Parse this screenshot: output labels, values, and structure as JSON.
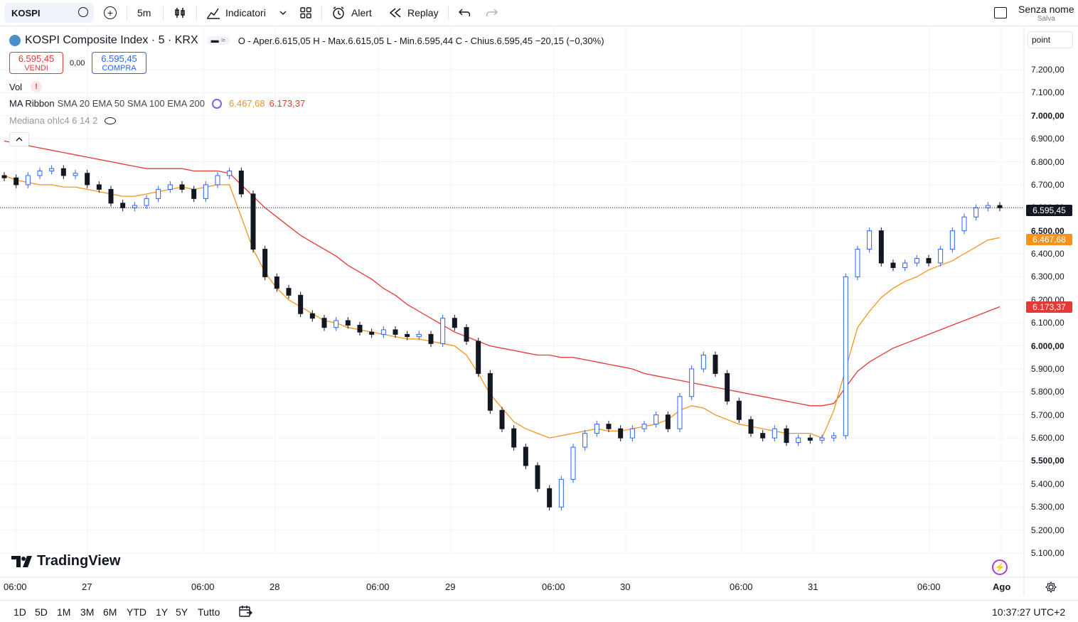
{
  "toolbar": {
    "symbol": "KOSPI",
    "interval": "5m",
    "indicators": "Indicatori",
    "alert": "Alert",
    "replay": "Replay",
    "layout_name": "Senza nome",
    "save": "Salva"
  },
  "legend": {
    "title": "KOSPI Composite Index · 5 · KRX",
    "ohlc": "O - Aper.6.615,05  H - Max.6.615,05  L - Min.6.595,44  C - Chius.6.595,45  −20,15 (−0,30%)",
    "sell_price": "6.595,45",
    "sell_label": "VENDI",
    "spread": "0,00",
    "buy_price": "6.595,45",
    "buy_label": "COMPRA",
    "vol": "Vol",
    "ma_label": "MA Ribbon",
    "ma_params": "SMA 20 EMA 50 SMA 100 EMA 200",
    "ma_val1": "6.467,68",
    "ma_val2": "6.173,37",
    "median": "Mediana ohlc4 6 14 2"
  },
  "scale_mode": "point",
  "y_ticks": [
    "7.200,00",
    "7.100,00",
    "7.000,00",
    "6.900,00",
    "6.800,00",
    "6.700,00",
    "6.600,00",
    "6.500,00",
    "6.400,00",
    "6.300,00",
    "6.200,00",
    "6.100,00",
    "6.000,00",
    "5.900,00",
    "5.800,00",
    "5.700,00",
    "5.600,00",
    "5.500,00",
    "5.400,00",
    "5.300,00",
    "5.200,00",
    "5.100,00"
  ],
  "x_ticks": [
    "06:00",
    "27",
    "06:00",
    "28",
    "06:00",
    "29",
    "06:00",
    "30",
    "06:00",
    "31",
    "06:00",
    "Ago"
  ],
  "tags": {
    "last": "6.595,45",
    "ema": "6.467,68",
    "sma": "6.173,37"
  },
  "ranges": [
    "1D",
    "5D",
    "1M",
    "3M",
    "6M",
    "YTD",
    "1Y",
    "5Y",
    "Tutto"
  ],
  "clock": "10:37:27 UTC+2",
  "brand": "TradingView",
  "colors": {
    "up": "#2962ff",
    "down": "#131722",
    "ema": "#f7931a",
    "sma": "#e53935"
  },
  "chart_data": {
    "type": "line",
    "ylim": [
      5050,
      7250
    ],
    "series": [
      {
        "values": [
          6730,
          6700,
          6740,
          6760,
          6770,
          6740,
          6750,
          6700,
          6680,
          6620,
          6600,
          6610,
          6640,
          6680,
          6700,
          6680,
          6640,
          6700,
          6740,
          6760,
          6660,
          6420,
          6300,
          6250,
          6220,
          6140,
          6120,
          6080,
          6110,
          6090,
          6060,
          6050,
          6070,
          6050,
          6040,
          6050,
          6010,
          6120,
          6080,
          6020,
          5880,
          5720,
          5640,
          5560,
          5480,
          5380,
          5300,
          5420,
          5560,
          5620,
          5660,
          5640,
          5600,
          5640,
          5660,
          5700,
          5640,
          5780,
          5900,
          5960,
          5880,
          5760,
          5680,
          5620,
          5600,
          5640,
          5580,
          5600,
          5590,
          5600,
          5610,
          6300,
          6420,
          6500,
          6360,
          6340,
          6360,
          6380,
          6360,
          6420,
          6500,
          6560,
          6600,
          6610,
          6600
        ]
      },
      {
        "name": "EMA 50",
        "values": [
          6740,
          6720,
          6710,
          6700,
          6700,
          6690,
          6690,
          6680,
          6670,
          6660,
          6650,
          6650,
          6660,
          6670,
          6680,
          6690,
          6680,
          6690,
          6700,
          6700,
          6560,
          6420,
          6320,
          6250,
          6200,
          6170,
          6140,
          6110,
          6100,
          6080,
          6070,
          6060,
          6050,
          6040,
          6030,
          6030,
          6020,
          6010,
          6000,
          5960,
          5880,
          5790,
          5730,
          5670,
          5640,
          5620,
          5600,
          5610,
          5620,
          5630,
          5640,
          5630,
          5630,
          5640,
          5650,
          5660,
          5680,
          5720,
          5740,
          5730,
          5700,
          5680,
          5660,
          5650,
          5640,
          5630,
          5620,
          5620,
          5620,
          5600,
          5720,
          5900,
          6080,
          6150,
          6210,
          6250,
          6280,
          6300,
          6330,
          6350,
          6370,
          6400,
          6430,
          6460,
          6470
        ]
      },
      {
        "name": "EMA 200",
        "values": [
          6890,
          6880,
          6870,
          6860,
          6850,
          6840,
          6830,
          6820,
          6810,
          6800,
          6790,
          6780,
          6770,
          6770,
          6770,
          6770,
          6760,
          6760,
          6760,
          6750,
          6700,
          6650,
          6600,
          6560,
          6520,
          6480,
          6450,
          6420,
          6390,
          6350,
          6320,
          6290,
          6250,
          6220,
          6180,
          6150,
          6120,
          6090,
          6060,
          6040,
          6020,
          6000,
          5990,
          5980,
          5970,
          5960,
          5960,
          5950,
          5950,
          5940,
          5930,
          5920,
          5910,
          5900,
          5880,
          5870,
          5860,
          5850,
          5840,
          5830,
          5820,
          5810,
          5800,
          5790,
          5780,
          5770,
          5760,
          5750,
          5740,
          5740,
          5750,
          5820,
          5890,
          5930,
          5960,
          5990,
          6010,
          6030,
          6050,
          6070,
          6090,
          6110,
          6130,
          6150,
          6170
        ]
      }
    ]
  }
}
